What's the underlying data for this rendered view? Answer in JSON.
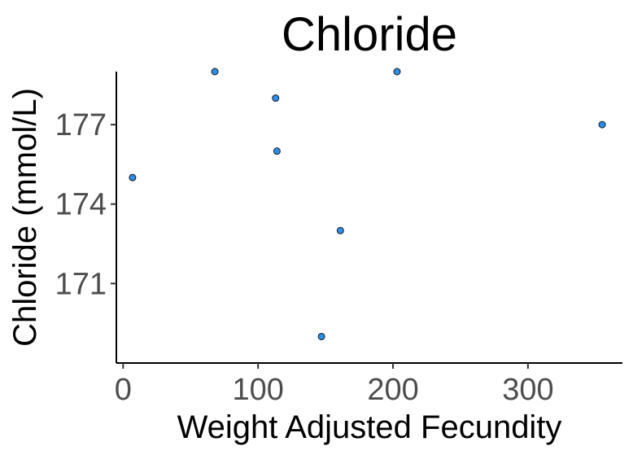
{
  "chart_data": {
    "type": "scatter",
    "title": "Chloride",
    "xlabel": "Weight Adjusted Fecundity",
    "ylabel": "Chloride (mmol/L)",
    "xlim": [
      -5,
      370
    ],
    "ylim": [
      168,
      179
    ],
    "x_ticks": [
      0,
      100,
      200,
      300
    ],
    "x_tick_labels": [
      "0",
      "100",
      "200",
      "300"
    ],
    "y_ticks": [
      171,
      174,
      177
    ],
    "y_tick_labels": [
      "171",
      "174",
      "177"
    ],
    "grid": false,
    "point_color": "#2a8ee8",
    "points": [
      {
        "x": 7,
        "y": 175
      },
      {
        "x": 68,
        "y": 179
      },
      {
        "x": 113,
        "y": 178
      },
      {
        "x": 114,
        "y": 176
      },
      {
        "x": 147,
        "y": 169
      },
      {
        "x": 161,
        "y": 173
      },
      {
        "x": 203,
        "y": 179
      },
      {
        "x": 355,
        "y": 177
      }
    ]
  }
}
